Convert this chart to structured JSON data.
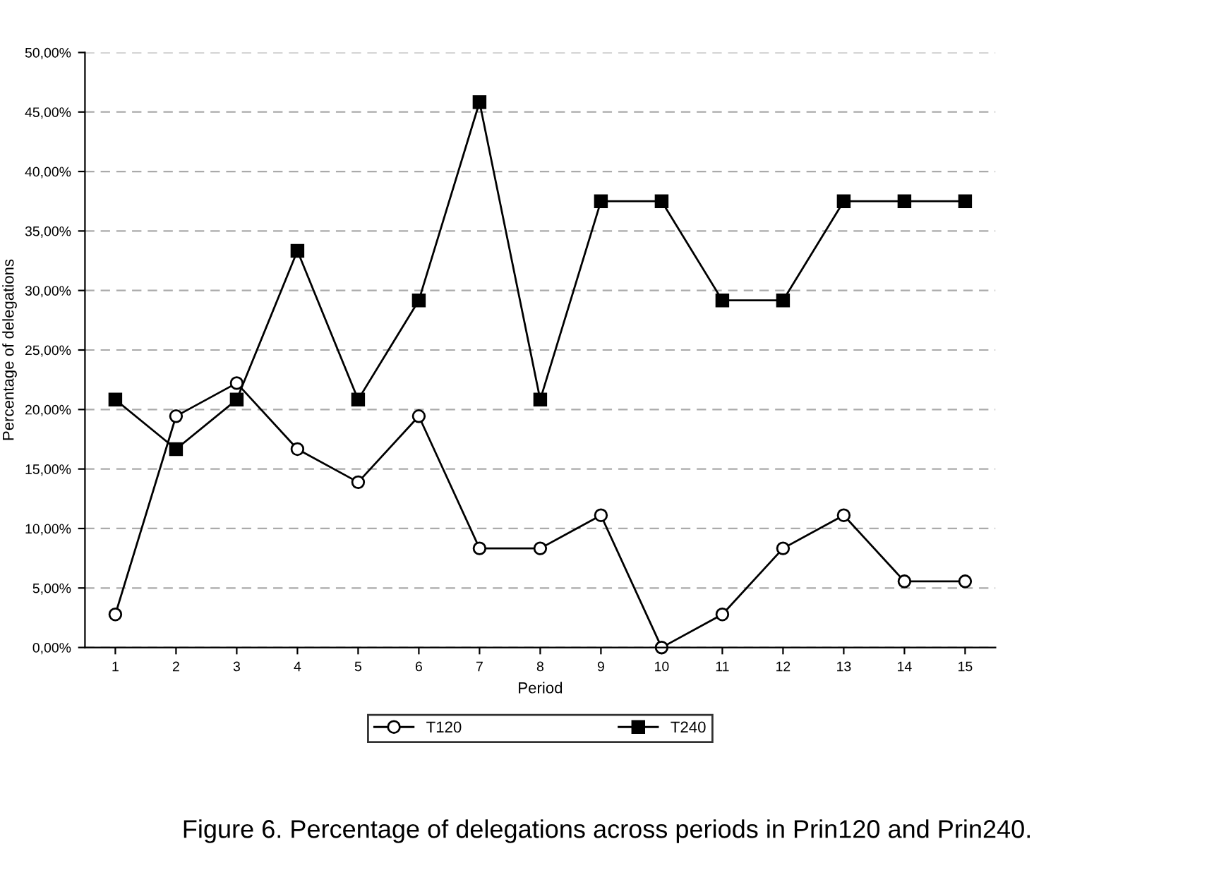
{
  "chart_data": {
    "type": "line",
    "xlabel": "Period",
    "ylabel": "Percentage of delegations",
    "categories": [
      "1",
      "2",
      "3",
      "4",
      "5",
      "6",
      "7",
      "8",
      "9",
      "10",
      "11",
      "12",
      "13",
      "14",
      "15"
    ],
    "series": [
      {
        "name": "T120",
        "color": "#000000",
        "marker": "circle",
        "values": [
          2.78,
          19.44,
          22.22,
          16.67,
          13.89,
          19.44,
          8.33,
          8.33,
          11.11,
          0,
          2.78,
          8.33,
          11.11,
          5.56,
          5.56
        ]
      },
      {
        "name": "T240",
        "color": "#000000",
        "marker": "square",
        "values": [
          20.83,
          16.67,
          20.83,
          33.33,
          20.83,
          29.17,
          45.83,
          20.83,
          37.5,
          37.5,
          29.17,
          29.17,
          37.5,
          37.5,
          37.5
        ]
      }
    ],
    "ylim": [
      0,
      50
    ],
    "yticks": [
      {
        "value": 0,
        "label": "0,00%"
      },
      {
        "value": 5,
        "label": "5,00%"
      },
      {
        "value": 10,
        "label": "10,00%"
      },
      {
        "value": 15,
        "label": "15,00%"
      },
      {
        "value": 20,
        "label": "20,00%"
      },
      {
        "value": 25,
        "label": "25,00%"
      },
      {
        "value": 30,
        "label": "30,00%"
      },
      {
        "value": 35,
        "label": "35,00%"
      },
      {
        "value": 40,
        "label": "40,00%"
      },
      {
        "value": 45,
        "label": "45,00%"
      },
      {
        "value": 50,
        "label": "50,00%"
      }
    ],
    "grid": "y",
    "legend": "bottom",
    "line_style": "solid",
    "annotations": [
      "Figure 6. Percentage of delegations across periods in Prin120 and Prin240."
    ]
  }
}
